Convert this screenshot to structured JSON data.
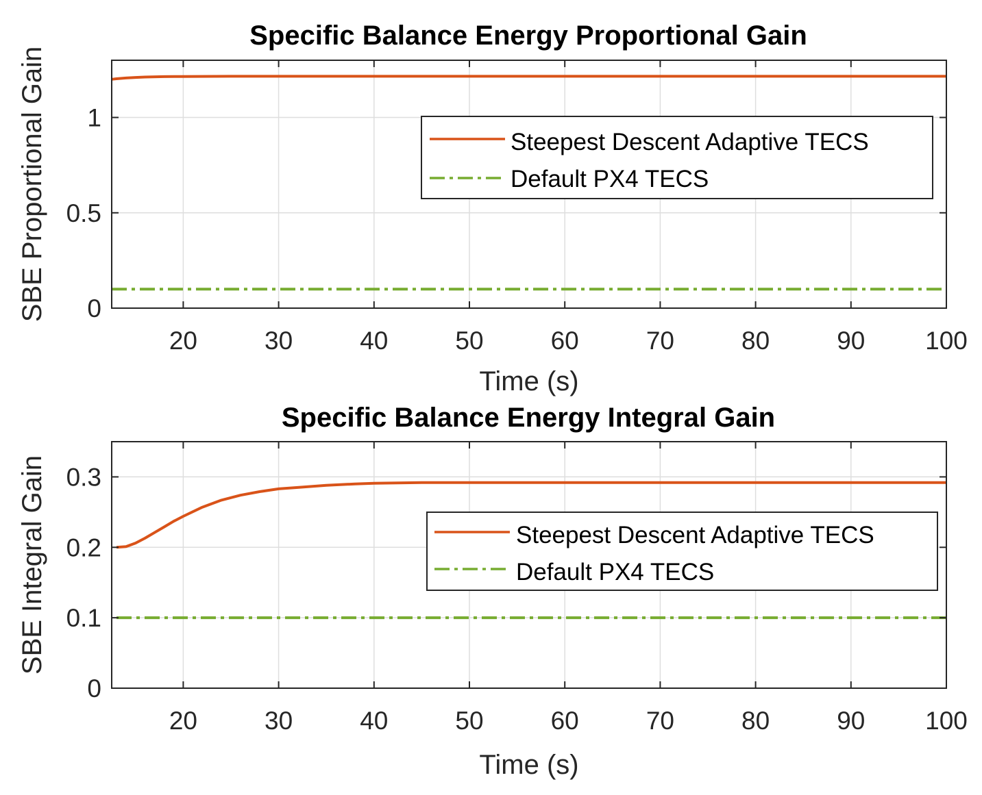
{
  "chart_data": [
    {
      "type": "line",
      "title": "Specific Balance Energy Proportional Gain",
      "xlabel": "Time (s)",
      "ylabel": "SBE Proportional Gain",
      "xlim": [
        12.5,
        100
      ],
      "ylim": [
        0,
        1.3
      ],
      "xticks": [
        20,
        30,
        40,
        50,
        60,
        70,
        80,
        90,
        100
      ],
      "xtick_labels": [
        "20",
        "30",
        "40",
        "50",
        "60",
        "70",
        "80",
        "90",
        "100"
      ],
      "yticks": [
        0,
        0.5,
        1
      ],
      "ytick_labels": [
        "0",
        "0.5",
        "1"
      ],
      "grid": true,
      "legend_position": "upper-right",
      "series": [
        {
          "name": "Steepest Descent Adaptive TECS",
          "color": "#d95319",
          "style": "solid",
          "x": [
            12.5,
            13,
            14,
            15,
            16,
            18,
            20,
            25,
            30,
            40,
            50,
            60,
            70,
            80,
            90,
            100
          ],
          "y": [
            1.2,
            1.203,
            1.207,
            1.21,
            1.212,
            1.214,
            1.215,
            1.216,
            1.216,
            1.216,
            1.216,
            1.216,
            1.216,
            1.216,
            1.216,
            1.216
          ]
        },
        {
          "name": "Default PX4 TECS",
          "color": "#77ac30",
          "style": "dashdot",
          "x": [
            12.5,
            100
          ],
          "y": [
            0.1,
            0.1
          ]
        }
      ]
    },
    {
      "type": "line",
      "title": "Specific Balance Energy Integral Gain",
      "xlabel": "Time (s)",
      "ylabel": "SBE Integral Gain",
      "xlim": [
        12.5,
        100
      ],
      "ylim": [
        0,
        0.35
      ],
      "xticks": [
        20,
        30,
        40,
        50,
        60,
        70,
        80,
        90,
        100
      ],
      "xtick_labels": [
        "20",
        "30",
        "40",
        "50",
        "60",
        "70",
        "80",
        "90",
        "100"
      ],
      "yticks": [
        0,
        0.1,
        0.2,
        0.3
      ],
      "ytick_labels": [
        "0",
        "0.1",
        "0.2",
        "0.3"
      ],
      "grid": true,
      "legend_position": "upper-right",
      "series": [
        {
          "name": "Steepest Descent Adaptive TECS",
          "color": "#d95319",
          "style": "solid",
          "x": [
            13,
            14,
            15,
            16,
            17,
            18,
            19,
            20,
            22,
            24,
            26,
            28,
            30,
            32,
            35,
            38,
            40,
            45,
            50,
            60,
            70,
            80,
            90,
            100
          ],
          "y": [
            0.2,
            0.201,
            0.206,
            0.213,
            0.221,
            0.229,
            0.237,
            0.244,
            0.257,
            0.267,
            0.274,
            0.279,
            0.283,
            0.285,
            0.288,
            0.29,
            0.291,
            0.292,
            0.292,
            0.292,
            0.292,
            0.292,
            0.292,
            0.292
          ]
        },
        {
          "name": "Default PX4 TECS",
          "color": "#77ac30",
          "style": "dashdot",
          "x": [
            13,
            100
          ],
          "y": [
            0.1,
            0.1
          ]
        }
      ]
    }
  ]
}
